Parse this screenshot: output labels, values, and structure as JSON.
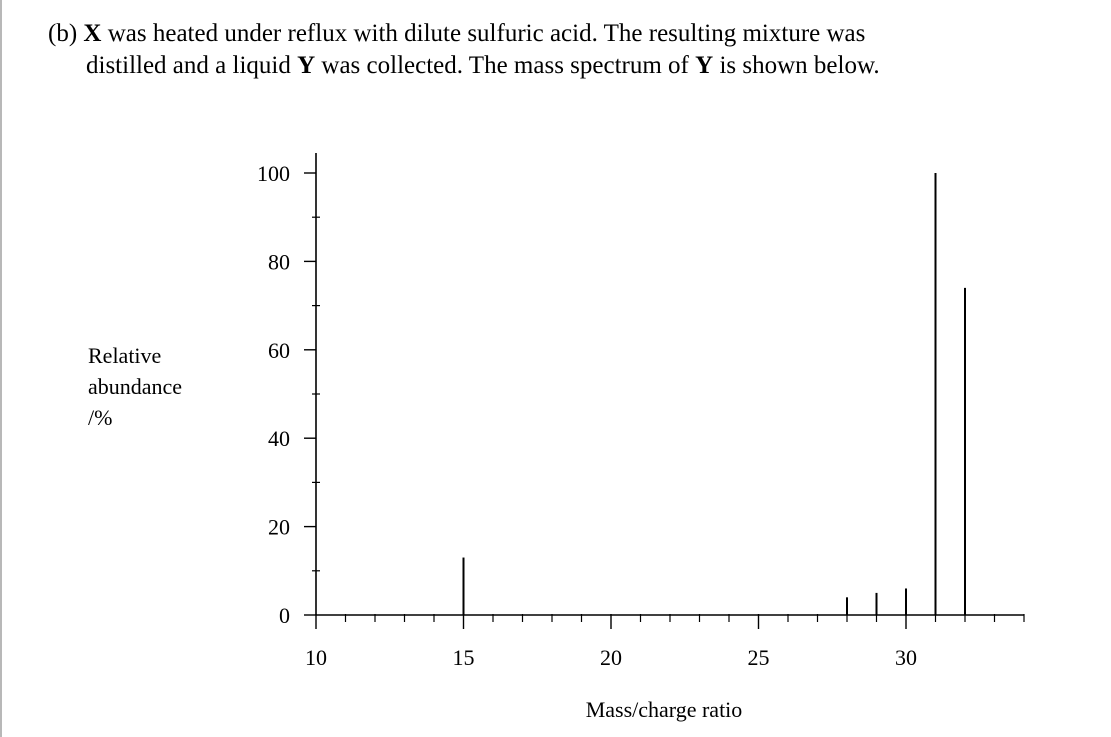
{
  "question": {
    "part": "(b)",
    "var_x": "X",
    "text_a": "was heated under reflux with dilute sulfuric acid. The resulting mixture was",
    "text_b": "distilled and a liquid",
    "var_y": "Y",
    "text_c": "was collected. The mass spectrum of",
    "var_y2": "Y",
    "text_d": "is shown below."
  },
  "chart_data": {
    "type": "bar",
    "xlabel": "Mass/charge ratio",
    "ylabel_lines": [
      "Relative",
      "abundance",
      "/%"
    ],
    "xlim": [
      10,
      34
    ],
    "ylim": [
      0,
      100
    ],
    "x_ticks": [
      10,
      15,
      20,
      25,
      30
    ],
    "y_ticks": [
      0,
      20,
      40,
      60,
      80,
      100
    ],
    "x": [
      15,
      28,
      29,
      30,
      31,
      32
    ],
    "values": [
      13,
      4,
      5,
      6,
      100,
      74
    ],
    "colors": {
      "axis": "#000000",
      "bars": "#000000"
    }
  }
}
